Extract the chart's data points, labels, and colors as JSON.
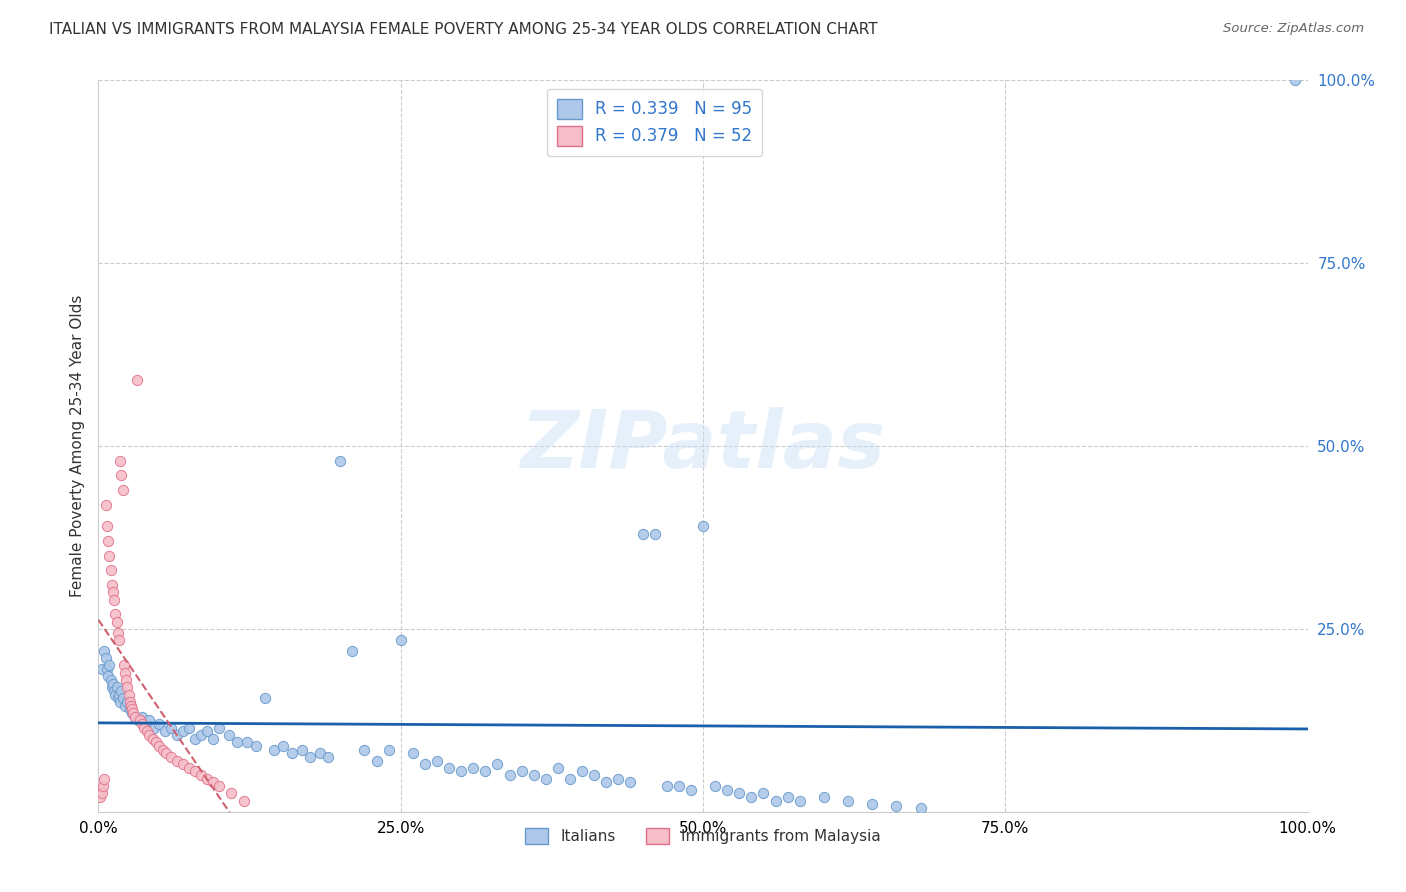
{
  "title": "ITALIAN VS IMMIGRANTS FROM MALAYSIA FEMALE POVERTY AMONG 25-34 YEAR OLDS CORRELATION CHART",
  "source": "Source: ZipAtlas.com",
  "ylabel": "Female Poverty Among 25-34 Year Olds",
  "xlim": [
    0,
    1.0
  ],
  "ylim": [
    0,
    1.0
  ],
  "xtick_positions": [
    0.0,
    0.25,
    0.5,
    0.75,
    1.0
  ],
  "xtick_labels": [
    "0.0%",
    "25.0%",
    "50.0%",
    "75.0%",
    "100.0%"
  ],
  "ytick_positions_right": [
    0.25,
    0.5,
    0.75,
    1.0
  ],
  "ytick_labels_right": [
    "25.0%",
    "50.0%",
    "75.0%",
    "100.0%"
  ],
  "italian_color": "#adc8e8",
  "italian_edge_color": "#6699cc",
  "malaysia_color": "#f5bec8",
  "malaysia_edge_color": "#e0708a",
  "regression_color_italian": "#1a5faa",
  "regression_color_malaysia": "#d06070",
  "R_italian": 0.339,
  "N_italian": 95,
  "R_malaysia": 0.379,
  "N_malaysia": 52,
  "watermark": "ZIPatlas",
  "background_color": "#ffffff",
  "grid_color": "#cccccc",
  "title_color": "#333333",
  "source_color": "#666666",
  "right_tick_color": "#3377cc",
  "it_x": [
    0.003,
    0.005,
    0.006,
    0.007,
    0.008,
    0.009,
    0.01,
    0.011,
    0.012,
    0.013,
    0.014,
    0.015,
    0.016,
    0.017,
    0.018,
    0.019,
    0.02,
    0.022,
    0.024,
    0.026,
    0.028,
    0.03,
    0.033,
    0.036,
    0.039,
    0.042,
    0.046,
    0.05,
    0.055,
    0.06,
    0.065,
    0.07,
    0.075,
    0.08,
    0.085,
    0.09,
    0.095,
    0.1,
    0.108,
    0.115,
    0.123,
    0.13,
    0.138,
    0.145,
    0.153,
    0.16,
    0.168,
    0.175,
    0.183,
    0.19,
    0.2,
    0.21,
    0.22,
    0.23,
    0.24,
    0.25,
    0.26,
    0.27,
    0.28,
    0.29,
    0.3,
    0.31,
    0.32,
    0.33,
    0.34,
    0.35,
    0.36,
    0.37,
    0.38,
    0.39,
    0.4,
    0.41,
    0.42,
    0.43,
    0.44,
    0.45,
    0.46,
    0.47,
    0.48,
    0.49,
    0.5,
    0.51,
    0.52,
    0.53,
    0.54,
    0.55,
    0.56,
    0.57,
    0.58,
    0.6,
    0.62,
    0.64,
    0.66,
    0.68,
    0.99
  ],
  "it_y": [
    0.195,
    0.22,
    0.21,
    0.195,
    0.185,
    0.2,
    0.18,
    0.17,
    0.175,
    0.165,
    0.16,
    0.17,
    0.155,
    0.16,
    0.15,
    0.165,
    0.155,
    0.145,
    0.15,
    0.14,
    0.135,
    0.13,
    0.125,
    0.13,
    0.12,
    0.125,
    0.115,
    0.12,
    0.11,
    0.115,
    0.105,
    0.11,
    0.115,
    0.1,
    0.105,
    0.11,
    0.1,
    0.115,
    0.105,
    0.095,
    0.095,
    0.09,
    0.155,
    0.085,
    0.09,
    0.08,
    0.085,
    0.075,
    0.08,
    0.075,
    0.48,
    0.22,
    0.085,
    0.07,
    0.085,
    0.235,
    0.08,
    0.065,
    0.07,
    0.06,
    0.055,
    0.06,
    0.055,
    0.065,
    0.05,
    0.055,
    0.05,
    0.045,
    0.06,
    0.045,
    0.055,
    0.05,
    0.04,
    0.045,
    0.04,
    0.38,
    0.38,
    0.035,
    0.035,
    0.03,
    0.39,
    0.035,
    0.03,
    0.025,
    0.02,
    0.025,
    0.015,
    0.02,
    0.015,
    0.02,
    0.015,
    0.01,
    0.008,
    0.005,
    1.0
  ],
  "my_x": [
    0.001,
    0.002,
    0.003,
    0.004,
    0.005,
    0.006,
    0.007,
    0.008,
    0.009,
    0.01,
    0.011,
    0.012,
    0.013,
    0.014,
    0.015,
    0.016,
    0.017,
    0.018,
    0.019,
    0.02,
    0.021,
    0.022,
    0.023,
    0.024,
    0.025,
    0.026,
    0.027,
    0.028,
    0.029,
    0.03,
    0.032,
    0.034,
    0.036,
    0.038,
    0.04,
    0.042,
    0.045,
    0.048,
    0.05,
    0.053,
    0.056,
    0.06,
    0.065,
    0.07,
    0.075,
    0.08,
    0.085,
    0.09,
    0.095,
    0.1,
    0.11,
    0.12
  ],
  "my_y": [
    0.02,
    0.03,
    0.025,
    0.035,
    0.045,
    0.42,
    0.39,
    0.37,
    0.35,
    0.33,
    0.31,
    0.3,
    0.29,
    0.27,
    0.26,
    0.245,
    0.235,
    0.48,
    0.46,
    0.44,
    0.2,
    0.19,
    0.18,
    0.17,
    0.16,
    0.15,
    0.145,
    0.14,
    0.135,
    0.13,
    0.59,
    0.125,
    0.12,
    0.115,
    0.11,
    0.105,
    0.1,
    0.095,
    0.09,
    0.085,
    0.08,
    0.075,
    0.07,
    0.065,
    0.06,
    0.055,
    0.05,
    0.045,
    0.04,
    0.035,
    0.025,
    0.015
  ]
}
